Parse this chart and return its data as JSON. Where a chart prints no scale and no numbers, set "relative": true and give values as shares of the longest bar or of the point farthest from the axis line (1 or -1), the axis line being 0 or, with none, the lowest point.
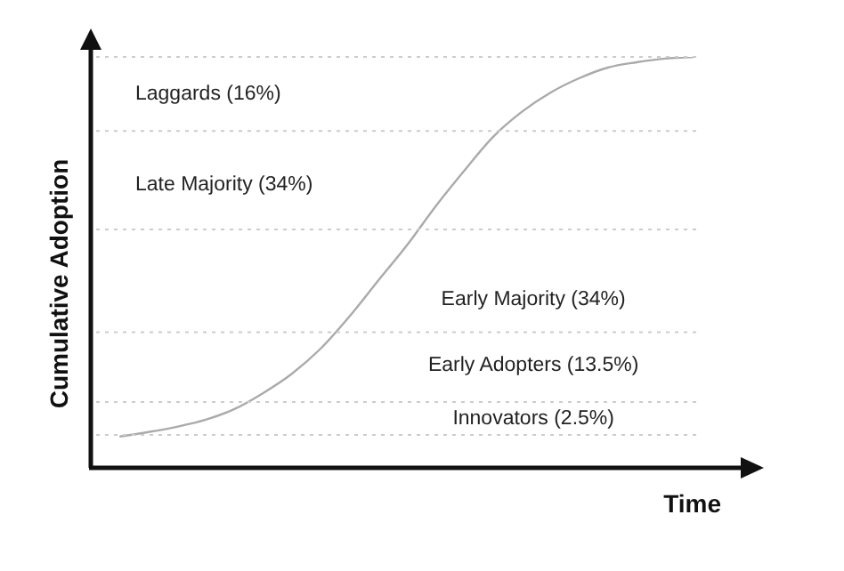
{
  "chart_data": {
    "type": "line",
    "xlabel": "Time",
    "ylabel": "Cumulative Adoption",
    "relative": true,
    "marker": "none",
    "categories": [
      null,
      null,
      null,
      null,
      null,
      null,
      null,
      null,
      null,
      null,
      null,
      null,
      null,
      null,
      null,
      null,
      null,
      null,
      null,
      null,
      null,
      null,
      null,
      null
    ],
    "series": [
      {
        "color": "#aaaaaa",
        "values": [
          null,
          0.076,
          0.087,
          0.1,
          0.117,
          0.143,
          0.182,
          0.229,
          0.29,
          0.368,
          0.455,
          0.541,
          0.636,
          0.723,
          0.805,
          0.866,
          0.913,
          0.948,
          0.974,
          0.987,
          0.996,
          1,
          null,
          null
        ]
      }
    ],
    "ref_lines": [
      {
        "axis": "y",
        "value": 1,
        "color": "#cccccc",
        "line_style": "dotted"
      },
      {
        "axis": "y",
        "value": 0.82,
        "color": "#cccccc",
        "line_style": "dotted"
      },
      {
        "axis": "y",
        "value": 0.58,
        "color": "#cccccc",
        "line_style": "dotted"
      },
      {
        "axis": "y",
        "value": 0.33,
        "color": "#cccccc",
        "line_style": "dotted"
      },
      {
        "axis": "y",
        "value": 0.16,
        "color": "#cccccc",
        "line_style": "dotted"
      },
      {
        "axis": "y",
        "value": 0.08,
        "color": "#cccccc",
        "line_style": "dotted"
      }
    ],
    "annotations": [
      "Laggards (16%)",
      "Late Majority (34%)",
      "Early Majority (34%)",
      "Early Adopters (13.5%)",
      "Innovators (2.5%)"
    ]
  }
}
